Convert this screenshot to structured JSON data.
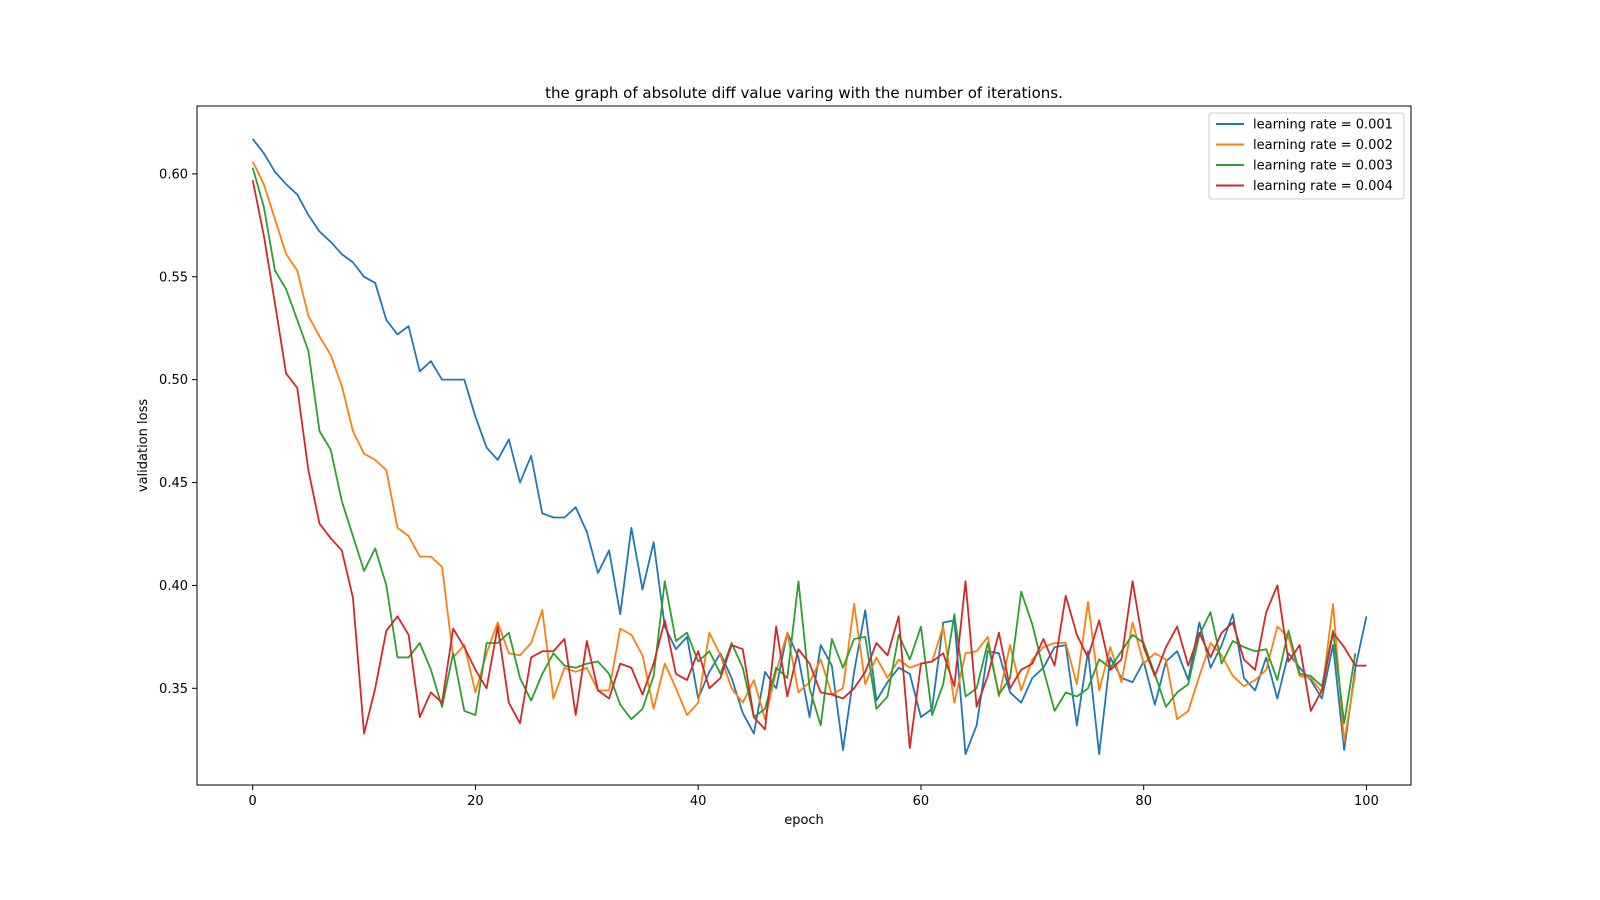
{
  "chart_data": {
    "type": "line",
    "title": "the graph of absolute diff value varing with the number of iterations.",
    "xlabel": "epoch",
    "ylabel": "validation loss",
    "xlim": [
      -5,
      104
    ],
    "ylim": [
      0.303,
      0.633
    ],
    "xticks": [
      0,
      20,
      40,
      60,
      80,
      100
    ],
    "yticks": [
      0.35,
      0.4,
      0.45,
      0.5,
      0.55,
      0.6
    ],
    "ytick_labels": [
      "0.35",
      "0.40",
      "0.45",
      "0.50",
      "0.55",
      "0.60"
    ],
    "grid": false,
    "legend_position": "top-right",
    "series": [
      {
        "name": "learning rate = 0.001",
        "color": "#1f77b4",
        "values": [
          0.617,
          0.61,
          0.601,
          0.595,
          0.59,
          0.58,
          0.572,
          0.567,
          0.561,
          0.557,
          0.55,
          0.547,
          0.529,
          0.522,
          0.526,
          0.504,
          0.509,
          0.5,
          0.5,
          0.5,
          0.482,
          0.467,
          0.461,
          0.471,
          0.45,
          0.463,
          0.435,
          0.433,
          0.433,
          0.438,
          0.426,
          0.406,
          0.417,
          0.386,
          0.428,
          0.398,
          0.421,
          0.38,
          0.369,
          0.375,
          0.345,
          0.358,
          0.367,
          0.355,
          0.338,
          0.328,
          0.358,
          0.35,
          0.377,
          0.365,
          0.336,
          0.371,
          0.361,
          0.32,
          0.358,
          0.388,
          0.344,
          0.353,
          0.36,
          0.357,
          0.336,
          0.34,
          0.382,
          0.383,
          0.318,
          0.332,
          0.368,
          0.367,
          0.348,
          0.343,
          0.355,
          0.36,
          0.37,
          0.371,
          0.332,
          0.368,
          0.318,
          0.365,
          0.355,
          0.353,
          0.363,
          0.342,
          0.363,
          0.368,
          0.354,
          0.382,
          0.36,
          0.371,
          0.386,
          0.355,
          0.349,
          0.365,
          0.345,
          0.367,
          0.36,
          0.354,
          0.345,
          0.371,
          0.32,
          0.36,
          0.385
        ]
      },
      {
        "name": "learning rate = 0.002",
        "color": "#ff7f0e",
        "values": [
          0.606,
          0.595,
          0.578,
          0.561,
          0.553,
          0.531,
          0.521,
          0.512,
          0.497,
          0.475,
          0.464,
          0.461,
          0.456,
          0.428,
          0.424,
          0.414,
          0.414,
          0.409,
          0.365,
          0.371,
          0.348,
          0.367,
          0.382,
          0.367,
          0.366,
          0.372,
          0.388,
          0.345,
          0.36,
          0.358,
          0.36,
          0.349,
          0.349,
          0.379,
          0.376,
          0.366,
          0.34,
          0.362,
          0.35,
          0.337,
          0.343,
          0.377,
          0.366,
          0.35,
          0.343,
          0.354,
          0.335,
          0.358,
          0.377,
          0.348,
          0.353,
          0.364,
          0.347,
          0.35,
          0.391,
          0.352,
          0.365,
          0.355,
          0.364,
          0.36,
          0.362,
          0.363,
          0.38,
          0.343,
          0.367,
          0.368,
          0.375,
          0.346,
          0.371,
          0.349,
          0.364,
          0.37,
          0.372,
          0.372,
          0.352,
          0.392,
          0.349,
          0.37,
          0.353,
          0.382,
          0.362,
          0.367,
          0.364,
          0.335,
          0.339,
          0.356,
          0.372,
          0.366,
          0.356,
          0.351,
          0.354,
          0.359,
          0.38,
          0.375,
          0.356,
          0.355,
          0.348,
          0.391,
          0.324,
          0.357
        ]
      },
      {
        "name": "learning rate = 0.003",
        "color": "#2ca02c",
        "values": [
          0.603,
          0.584,
          0.553,
          0.544,
          0.529,
          0.514,
          0.475,
          0.466,
          0.441,
          0.424,
          0.407,
          0.418,
          0.4,
          0.365,
          0.365,
          0.372,
          0.359,
          0.341,
          0.367,
          0.339,
          0.337,
          0.372,
          0.372,
          0.377,
          0.355,
          0.344,
          0.357,
          0.367,
          0.361,
          0.36,
          0.362,
          0.363,
          0.357,
          0.342,
          0.335,
          0.34,
          0.356,
          0.402,
          0.373,
          0.377,
          0.363,
          0.368,
          0.357,
          0.372,
          0.36,
          0.336,
          0.34,
          0.36,
          0.355,
          0.402,
          0.35,
          0.332,
          0.374,
          0.36,
          0.374,
          0.375,
          0.34,
          0.346,
          0.376,
          0.364,
          0.38,
          0.337,
          0.352,
          0.386,
          0.346,
          0.35,
          0.372,
          0.347,
          0.355,
          0.397,
          0.381,
          0.359,
          0.339,
          0.348,
          0.346,
          0.35,
          0.364,
          0.36,
          0.368,
          0.376,
          0.372,
          0.357,
          0.341,
          0.348,
          0.352,
          0.376,
          0.387,
          0.362,
          0.373,
          0.37,
          0.368,
          0.369,
          0.354,
          0.378,
          0.357,
          0.356,
          0.351,
          0.378,
          0.333,
          0.367
        ]
      },
      {
        "name": "learning rate = 0.004",
        "color": "#d62728",
        "values": [
          0.597,
          0.57,
          0.537,
          0.503,
          0.496,
          0.456,
          0.43,
          0.423,
          0.417,
          0.394,
          0.328,
          0.35,
          0.378,
          0.385,
          0.376,
          0.336,
          0.348,
          0.343,
          0.379,
          0.37,
          0.359,
          0.35,
          0.38,
          0.343,
          0.333,
          0.365,
          0.368,
          0.368,
          0.374,
          0.337,
          0.373,
          0.349,
          0.345,
          0.362,
          0.36,
          0.347,
          0.362,
          0.383,
          0.357,
          0.354,
          0.368,
          0.35,
          0.355,
          0.371,
          0.369,
          0.336,
          0.33,
          0.38,
          0.346,
          0.369,
          0.362,
          0.348,
          0.347,
          0.345,
          0.35,
          0.358,
          0.372,
          0.366,
          0.385,
          0.321,
          0.362,
          0.363,
          0.367,
          0.351,
          0.402,
          0.341,
          0.356,
          0.377,
          0.35,
          0.359,
          0.362,
          0.374,
          0.361,
          0.395,
          0.376,
          0.365,
          0.383,
          0.359,
          0.364,
          0.402,
          0.37,
          0.356,
          0.37,
          0.38,
          0.361,
          0.377,
          0.365,
          0.377,
          0.382,
          0.364,
          0.359,
          0.387,
          0.4,
          0.363,
          0.371,
          0.339,
          0.349,
          0.377,
          0.37,
          0.361,
          0.361
        ]
      }
    ]
  }
}
